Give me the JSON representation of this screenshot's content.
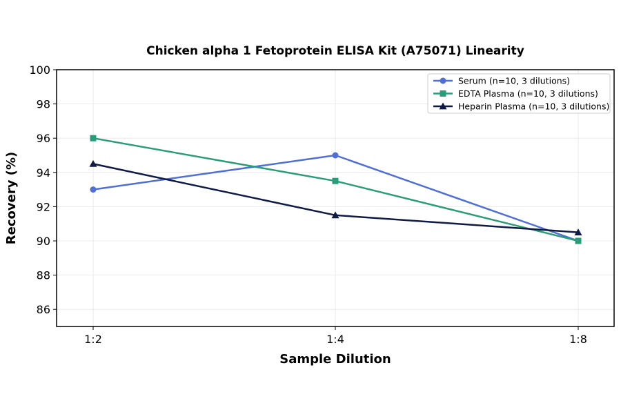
{
  "chart_data": {
    "type": "line",
    "title": "Chicken alpha 1 Fetoprotein ELISA Kit (A75071) Linearity",
    "xlabel": "Sample Dilution",
    "ylabel": "Recovery (%)",
    "categories": [
      "1:2",
      "1:4",
      "1:8"
    ],
    "ylim": [
      85,
      100
    ],
    "yticks": [
      86,
      88,
      90,
      92,
      94,
      96,
      98,
      100
    ],
    "grid": true,
    "legend_position": "top-right",
    "series": [
      {
        "name": "Serum (n=10, 3 dilutions)",
        "values": [
          93,
          95,
          90
        ],
        "color": "#4f6fd6",
        "marker": "circle"
      },
      {
        "name": "EDTA Plasma (n=10, 3 dilutions)",
        "values": [
          96,
          93.5,
          90
        ],
        "color": "#2a9d78",
        "marker": "square"
      },
      {
        "name": "Heparin Plasma (n=10, 3 dilutions)",
        "values": [
          94.5,
          91.5,
          90.5
        ],
        "color": "#0f1a45",
        "marker": "triangle"
      }
    ]
  }
}
